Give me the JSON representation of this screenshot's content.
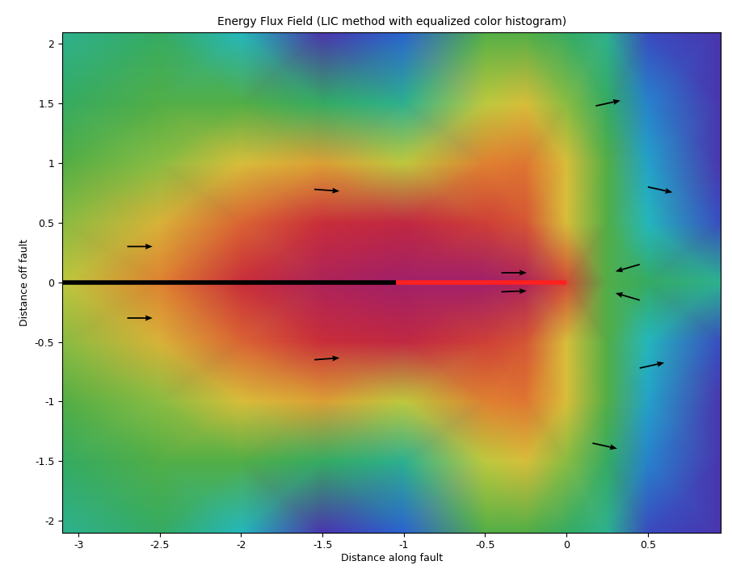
{
  "chart_data": {
    "type": "field",
    "title": "Energy Flux Field (LIC method with equalized color histogram)",
    "x_label": "Distance along fault",
    "y_label": "Distance off fault",
    "xlim": [
      -3.1,
      0.95
    ],
    "ylim": [
      -2.1,
      2.1
    ],
    "xticks": [
      -3,
      -2.5,
      -2,
      -1.5,
      -1,
      -0.5,
      0,
      0.5
    ],
    "yticks": [
      -2,
      -1.5,
      -1,
      -0.5,
      0,
      0.5,
      1,
      1.5,
      2
    ],
    "cell_x": [
      -3.1,
      -2.5,
      -2,
      -1.5,
      -1,
      -0.5,
      -0.25,
      0,
      0.25,
      0.5,
      0.95
    ],
    "cell_y": [
      -2.1,
      -1.5,
      -1.0,
      -0.5,
      0,
      0.5,
      1.0,
      1.5,
      2.1
    ],
    "cells": [
      [
        0.35,
        0.4,
        0.3,
        0.05,
        0.15,
        0.45,
        0.45,
        0.4,
        0.35,
        0.1,
        0.05
      ],
      [
        0.4,
        0.45,
        0.45,
        0.4,
        0.35,
        0.55,
        0.6,
        0.5,
        0.4,
        0.2,
        0.05
      ],
      [
        0.45,
        0.5,
        0.6,
        0.65,
        0.55,
        0.7,
        0.72,
        0.6,
        0.45,
        0.25,
        0.05
      ],
      [
        0.5,
        0.62,
        0.75,
        0.85,
        0.88,
        0.82,
        0.78,
        0.6,
        0.45,
        0.3,
        0.1
      ],
      [
        0.55,
        0.7,
        0.85,
        0.95,
        1.0,
        1.0,
        0.95,
        0.8,
        0.45,
        0.4,
        0.35
      ],
      [
        0.5,
        0.62,
        0.75,
        0.85,
        0.88,
        0.82,
        0.78,
        0.6,
        0.45,
        0.3,
        0.1
      ],
      [
        0.45,
        0.5,
        0.6,
        0.65,
        0.55,
        0.7,
        0.72,
        0.6,
        0.45,
        0.25,
        0.05
      ],
      [
        0.4,
        0.45,
        0.45,
        0.4,
        0.35,
        0.55,
        0.6,
        0.5,
        0.4,
        0.2,
        0.05
      ],
      [
        0.35,
        0.4,
        0.3,
        0.05,
        0.15,
        0.45,
        0.45,
        0.4,
        0.35,
        0.1,
        0.05
      ]
    ],
    "color_range": [
      0,
      1
    ],
    "segments": [
      {
        "x": [
          -3.1,
          -1.05
        ],
        "y": [
          0,
          0
        ],
        "color": "#000000"
      },
      {
        "x": [
          -1.05,
          0
        ],
        "y": [
          0,
          0
        ],
        "color": "#ff2020"
      }
    ],
    "arrows": {
      "x": [
        -2.7,
        -2.7,
        -1.55,
        -1.55,
        -0.4,
        -0.4,
        0.18,
        0.5,
        0.45,
        0.45,
        0.45,
        0.16
      ],
      "y": [
        0.3,
        -0.3,
        0.78,
        -0.65,
        0.08,
        -0.08,
        1.48,
        0.8,
        0.15,
        -0.15,
        -0.72,
        -1.35
      ],
      "u": [
        1,
        1,
        1,
        1,
        1,
        1,
        1,
        1,
        -1,
        -1,
        1,
        1
      ],
      "v": [
        0,
        0,
        -0.1,
        0.1,
        0,
        0.05,
        0.3,
        -0.3,
        -0.4,
        0.4,
        0.3,
        -0.3
      ],
      "color": "#000000"
    }
  }
}
